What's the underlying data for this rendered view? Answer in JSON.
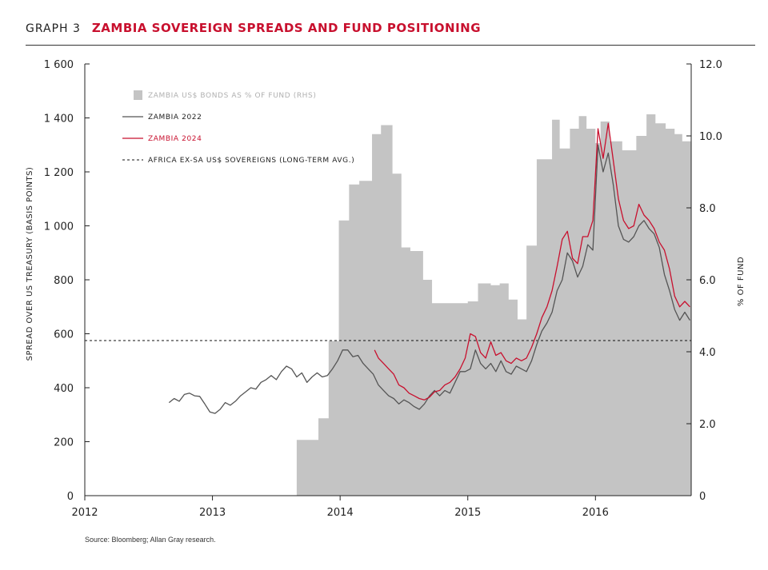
{
  "header": {
    "graph_number": "GRAPH 3",
    "title": "ZAMBIA SOVEREIGN SPREADS AND FUND POSITIONING"
  },
  "source": "Source: Bloomberg; Allan Gray research.",
  "colors": {
    "zambia_2022": "#555555",
    "zambia_2024": "#c8102e",
    "fund_area": "#c4c4c4",
    "title": "#c8102e"
  },
  "chart_data": {
    "type": "line",
    "xlabel": "",
    "ylabel": "SPREAD OVER US TREASURY (BASIS POINTS)",
    "ylabel_right": "% OF FUND",
    "xlim": [
      2012,
      2016.75
    ],
    "ylim": [
      0,
      1600
    ],
    "ylim_right": [
      0,
      12
    ],
    "x_ticks": [
      "2012",
      "2013",
      "2014",
      "2015",
      "2016"
    ],
    "y_ticks": [
      "0",
      "200",
      "400",
      "600",
      "800",
      "1 000",
      "1 200",
      "1 400",
      "1 600"
    ],
    "y_ticks_right": [
      "0",
      "2.0",
      "4.0",
      "6.0",
      "8.0",
      "10.0",
      "12.0"
    ],
    "grid": false,
    "legend_position": "top-left",
    "legend": [
      "ZAMBIA US$ BONDS AS % OF FUND (RHS)",
      "ZAMBIA 2022",
      "ZAMBIA 2024",
      "AFRICA EX-SA US$ SOVEREIGNS (LONG-TERM AVG.)"
    ],
    "reference_line": {
      "name": "AFRICA EX-SA US$ SOVEREIGNS (LONG-TERM AVG.)",
      "value": 575
    },
    "series": [
      {
        "name": "ZAMBIA US$ BONDS AS % OF FUND (RHS)",
        "kind": "area-step",
        "axis": "right",
        "x": [
          2013.64,
          2013.66,
          2013.73,
          2013.83,
          2013.91,
          2013.99,
          2014.07,
          2014.1,
          2014.15,
          2014.18,
          2014.25,
          2014.32,
          2014.41,
          2014.48,
          2014.55,
          2014.65,
          2014.72,
          2014.83,
          2015.0,
          2015.08,
          2015.18,
          2015.25,
          2015.32,
          2015.39,
          2015.46,
          2015.54,
          2015.59,
          2015.61,
          2015.66,
          2015.72,
          2015.8,
          2015.87,
          2015.93,
          2016.0,
          2016.04,
          2016.11,
          2016.21,
          2016.32,
          2016.4,
          2016.47,
          2016.55,
          2016.62,
          2016.68,
          2016.75
        ],
        "values": [
          0,
          1.55,
          1.55,
          2.15,
          4.3,
          7.65,
          8.65,
          8.65,
          8.75,
          8.75,
          10.05,
          10.3,
          8.95,
          6.9,
          6.8,
          6.0,
          5.35,
          5.35,
          5.4,
          5.9,
          5.85,
          5.9,
          5.45,
          4.9,
          6.95,
          9.35,
          9.35,
          9.35,
          10.45,
          9.65,
          10.2,
          10.55,
          10.2,
          9.8,
          10.4,
          9.85,
          9.6,
          10.0,
          10.6,
          10.35,
          10.2,
          10.05,
          9.85,
          9.85
        ]
      },
      {
        "name": "ZAMBIA 2022",
        "axis": "left",
        "x": [
          2012.66,
          2012.7,
          2012.74,
          2012.78,
          2012.82,
          2012.86,
          2012.9,
          2012.94,
          2012.98,
          2013.02,
          2013.06,
          2013.1,
          2013.14,
          2013.18,
          2013.22,
          2013.26,
          2013.3,
          2013.34,
          2013.38,
          2013.42,
          2013.46,
          2013.5,
          2013.54,
          2013.58,
          2013.62,
          2013.66,
          2013.7,
          2013.74,
          2013.78,
          2013.82,
          2013.86,
          2013.9,
          2013.94,
          2013.98,
          2014.02,
          2014.06,
          2014.1,
          2014.14,
          2014.18,
          2014.22,
          2014.26,
          2014.3,
          2014.34,
          2014.38,
          2014.42,
          2014.46,
          2014.5,
          2014.54,
          2014.58,
          2014.62,
          2014.66,
          2014.7,
          2014.74,
          2014.78,
          2014.82,
          2014.86,
          2014.9,
          2014.94,
          2014.98,
          2015.02,
          2015.06,
          2015.1,
          2015.14,
          2015.18,
          2015.22,
          2015.26,
          2015.3,
          2015.34,
          2015.38,
          2015.42,
          2015.46,
          2015.5,
          2015.54,
          2015.58,
          2015.62,
          2015.66,
          2015.7,
          2015.74,
          2015.78,
          2015.82,
          2015.86,
          2015.9,
          2015.94,
          2015.98,
          2016.02,
          2016.06,
          2016.1,
          2016.14,
          2016.18,
          2016.22,
          2016.26,
          2016.3,
          2016.34,
          2016.38,
          2016.42,
          2016.46,
          2016.5,
          2016.54,
          2016.58,
          2016.62,
          2016.66,
          2016.7,
          2016.74
        ],
        "values": [
          345,
          360,
          350,
          375,
          380,
          370,
          368,
          340,
          310,
          305,
          320,
          345,
          335,
          350,
          370,
          385,
          400,
          395,
          420,
          430,
          445,
          430,
          460,
          480,
          470,
          440,
          455,
          420,
          440,
          455,
          440,
          445,
          470,
          500,
          540,
          540,
          515,
          520,
          490,
          470,
          450,
          410,
          390,
          370,
          360,
          340,
          355,
          345,
          330,
          320,
          340,
          370,
          390,
          370,
          390,
          380,
          420,
          460,
          460,
          470,
          540,
          490,
          470,
          490,
          460,
          500,
          460,
          450,
          480,
          470,
          460,
          500,
          560,
          610,
          640,
          680,
          760,
          800,
          900,
          870,
          810,
          850,
          930,
          910,
          1300,
          1200,
          1270,
          1150,
          1000,
          950,
          940,
          960,
          1000,
          1020,
          990,
          970,
          920,
          820,
          760,
          690,
          650,
          680,
          650
        ]
      },
      {
        "name": "ZAMBIA 2024",
        "axis": "left",
        "x": [
          2014.27,
          2014.3,
          2014.34,
          2014.38,
          2014.42,
          2014.46,
          2014.5,
          2014.54,
          2014.58,
          2014.62,
          2014.66,
          2014.7,
          2014.74,
          2014.78,
          2014.82,
          2014.86,
          2014.9,
          2014.94,
          2014.98,
          2015.02,
          2015.06,
          2015.1,
          2015.14,
          2015.18,
          2015.22,
          2015.26,
          2015.3,
          2015.34,
          2015.38,
          2015.42,
          2015.46,
          2015.5,
          2015.54,
          2015.58,
          2015.62,
          2015.66,
          2015.7,
          2015.74,
          2015.78,
          2015.82,
          2015.86,
          2015.9,
          2015.94,
          2015.98,
          2016.02,
          2016.06,
          2016.1,
          2016.14,
          2016.18,
          2016.22,
          2016.26,
          2016.3,
          2016.34,
          2016.38,
          2016.42,
          2016.46,
          2016.5,
          2016.54,
          2016.58,
          2016.62,
          2016.66,
          2016.7,
          2016.74
        ],
        "values": [
          540,
          510,
          490,
          470,
          450,
          410,
          400,
          380,
          370,
          360,
          355,
          365,
          385,
          390,
          410,
          420,
          440,
          470,
          510,
          600,
          590,
          530,
          510,
          570,
          520,
          530,
          500,
          490,
          510,
          500,
          510,
          550,
          600,
          660,
          700,
          760,
          850,
          950,
          980,
          880,
          860,
          960,
          960,
          1020,
          1360,
          1250,
          1380,
          1240,
          1100,
          1020,
          990,
          1000,
          1080,
          1040,
          1020,
          990,
          940,
          910,
          840,
          740,
          700,
          720,
          700
        ]
      }
    ]
  }
}
